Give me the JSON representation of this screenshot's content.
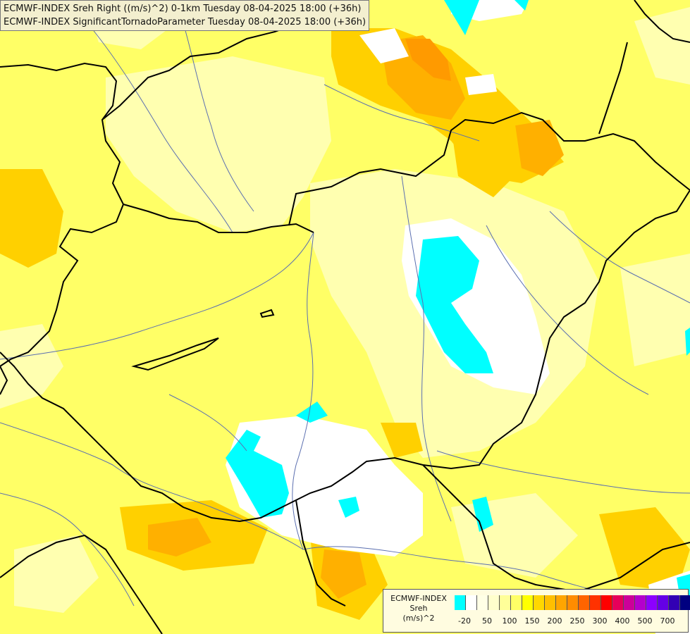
{
  "header": {
    "line1": "ECMWF-INDEX Sreh Right ((m/s)^2) 0-1km Tuesday 08-04-2025 18:00 (+36h)",
    "line2": "ECMWF-INDEX SignificantTornadoParameter Tuesday 08-04-2025 18:00 (+36h)"
  },
  "legend": {
    "title_line1": "ECMWF-INDEX",
    "title_line2": "Sreh",
    "title_line3": "(m/s)^2",
    "colors": [
      "#00ffff",
      "#ffffff",
      "#ffffe6",
      "#ffffcc",
      "#ffff99",
      "#ffff66",
      "#ffff00",
      "#ffd700",
      "#ffbf00",
      "#ffa500",
      "#ff8c00",
      "#ff6400",
      "#ff3200",
      "#ff0000",
      "#e6005a",
      "#cc0099",
      "#b400cc",
      "#8c00ff",
      "#6400e6",
      "#3200b4",
      "#000080"
    ],
    "tick_labels": [
      "-20",
      "50",
      "100",
      "150",
      "200",
      "250",
      "300",
      "400",
      "500",
      "700"
    ]
  }
}
